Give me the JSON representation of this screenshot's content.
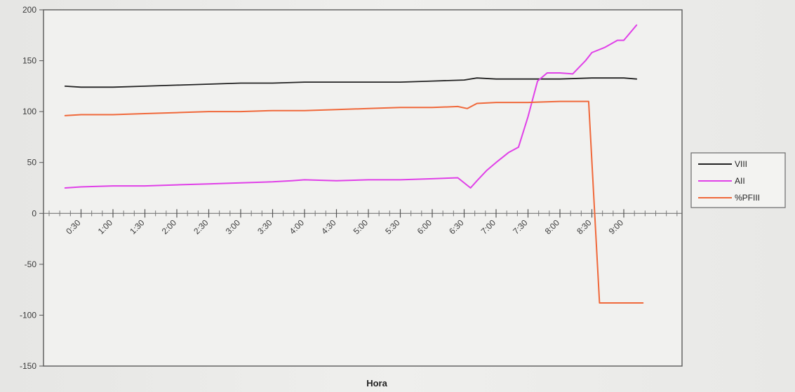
{
  "chart_data": {
    "type": "line",
    "xlabel": "Hora",
    "ylabel": "",
    "ylim": [
      -150,
      200
    ],
    "yticks": [
      200,
      150,
      100,
      50,
      0,
      -50,
      -100,
      -150
    ],
    "x_tick_labels": [
      "0:30",
      "1:00",
      "1:30",
      "2:00",
      "2:30",
      "3:00",
      "3:30",
      "4:00",
      "4:30",
      "5:00",
      "5:30",
      "6:00",
      "6:30",
      "7:00",
      "7:30",
      "8:00",
      "8:30",
      "9:00"
    ],
    "x_range": [
      0.25,
      9.45
    ],
    "grid": false,
    "legend_position": "right",
    "series": [
      {
        "name": "VIII",
        "color": "#222222",
        "x": [
          0.25,
          0.5,
          1,
          1.5,
          2,
          2.5,
          3,
          3.5,
          4,
          4.5,
          5,
          5.5,
          6,
          6.5,
          6.7,
          7,
          7.5,
          8,
          8.5,
          9,
          9.2
        ],
        "values": [
          125,
          124,
          124,
          125,
          126,
          127,
          128,
          128,
          129,
          129,
          129,
          129,
          130,
          131,
          133,
          132,
          132,
          132,
          133,
          133,
          132
        ]
      },
      {
        "name": "AII",
        "color": "#e040e8",
        "x": [
          0.25,
          0.5,
          1,
          1.5,
          2,
          2.5,
          3,
          3.5,
          3.8,
          4,
          4.5,
          5,
          5.5,
          6,
          6.4,
          6.6,
          6.7,
          6.85,
          7,
          7.2,
          7.35,
          7.5,
          7.65,
          7.8,
          8,
          8.2,
          8.4,
          8.5,
          8.7,
          8.9,
          9,
          9.2
        ],
        "values": [
          25,
          26,
          27,
          27,
          28,
          29,
          30,
          31,
          32,
          33,
          32,
          33,
          33,
          34,
          35,
          25,
          32,
          42,
          50,
          60,
          65,
          95,
          130,
          138,
          138,
          137,
          150,
          158,
          163,
          170,
          170,
          185
        ]
      },
      {
        "name": "%PFIII",
        "color": "#f0683a",
        "x": [
          0.25,
          0.5,
          1,
          1.5,
          2,
          2.5,
          3,
          3.5,
          4,
          4.5,
          5,
          5.5,
          6,
          6.4,
          6.55,
          6.7,
          7,
          7.5,
          8,
          8.3,
          8.45,
          8.62,
          9,
          9.3
        ],
        "values": [
          96,
          97,
          97,
          98,
          99,
          100,
          100,
          101,
          101,
          102,
          103,
          104,
          104,
          105,
          103,
          108,
          109,
          109,
          110,
          110,
          110,
          -88,
          -88,
          -88
        ]
      }
    ]
  }
}
